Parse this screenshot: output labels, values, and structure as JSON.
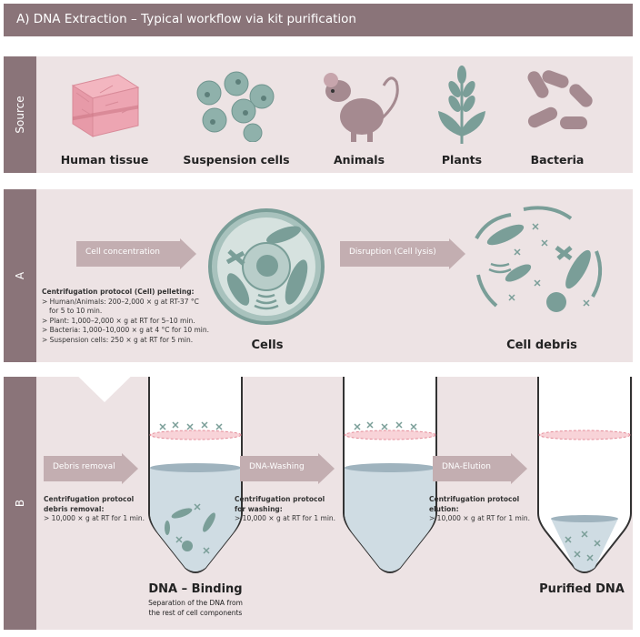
{
  "title": "A) DNA Extraction – Typical workflow via kit purification",
  "colors": {
    "accent": "#8a7479",
    "panel": "#ede3e4",
    "arrow": "#c3aeb1",
    "cell": "#7a9e98",
    "tube": "#cfdce3"
  },
  "source": {
    "label": "Source",
    "items": [
      "Human tissue",
      "Suspension cells",
      "Animals",
      "Plants",
      "Bacteria"
    ]
  },
  "section_a": {
    "label": "A",
    "arrow1": "Cell concentration",
    "arrow2": "Disruption (Cell lysis)",
    "cells_label": "Cells",
    "debris_label": "Cell debris",
    "protocol_title": "Centrifugation protocol (Cell) pelleting:",
    "protocol_lines": [
      "> Human/Animals: 200–2,000 × g at RT-37 °C",
      "   for 5 to 10 min.",
      "> Plant: 1,000–2,000 × g at RT for 5–10 min.",
      "> Bacteria: 1,000–10,000 × g at 4 °C for 10 min.",
      "> Suspension cells: 250 × g at RT for 5 min."
    ]
  },
  "section_b": {
    "label": "B",
    "arrow1": "Debris removal",
    "arrow2": "DNA-Washing",
    "arrow3": "DNA-Elution",
    "proto1_title1": "Centrifugation protocol",
    "proto1_title2": "debris removal:",
    "proto1_line": "> 10,000 × g at RT for 1 min.",
    "proto2_title1": "Centrifugation protocol",
    "proto2_title2": "for washing:",
    "proto2_line": "> 10,000 × g at RT for 1 min.",
    "proto3_title1": "Centrifugation protocol",
    "proto3_title2": "elution:",
    "proto3_line": "> 10,000 × g at RT for 1 min.",
    "binding_label": "DNA – Binding",
    "binding_note1": "Separation of the DNA from",
    "binding_note2": "the rest of cell components",
    "purified_label": "Purified DNA"
  }
}
